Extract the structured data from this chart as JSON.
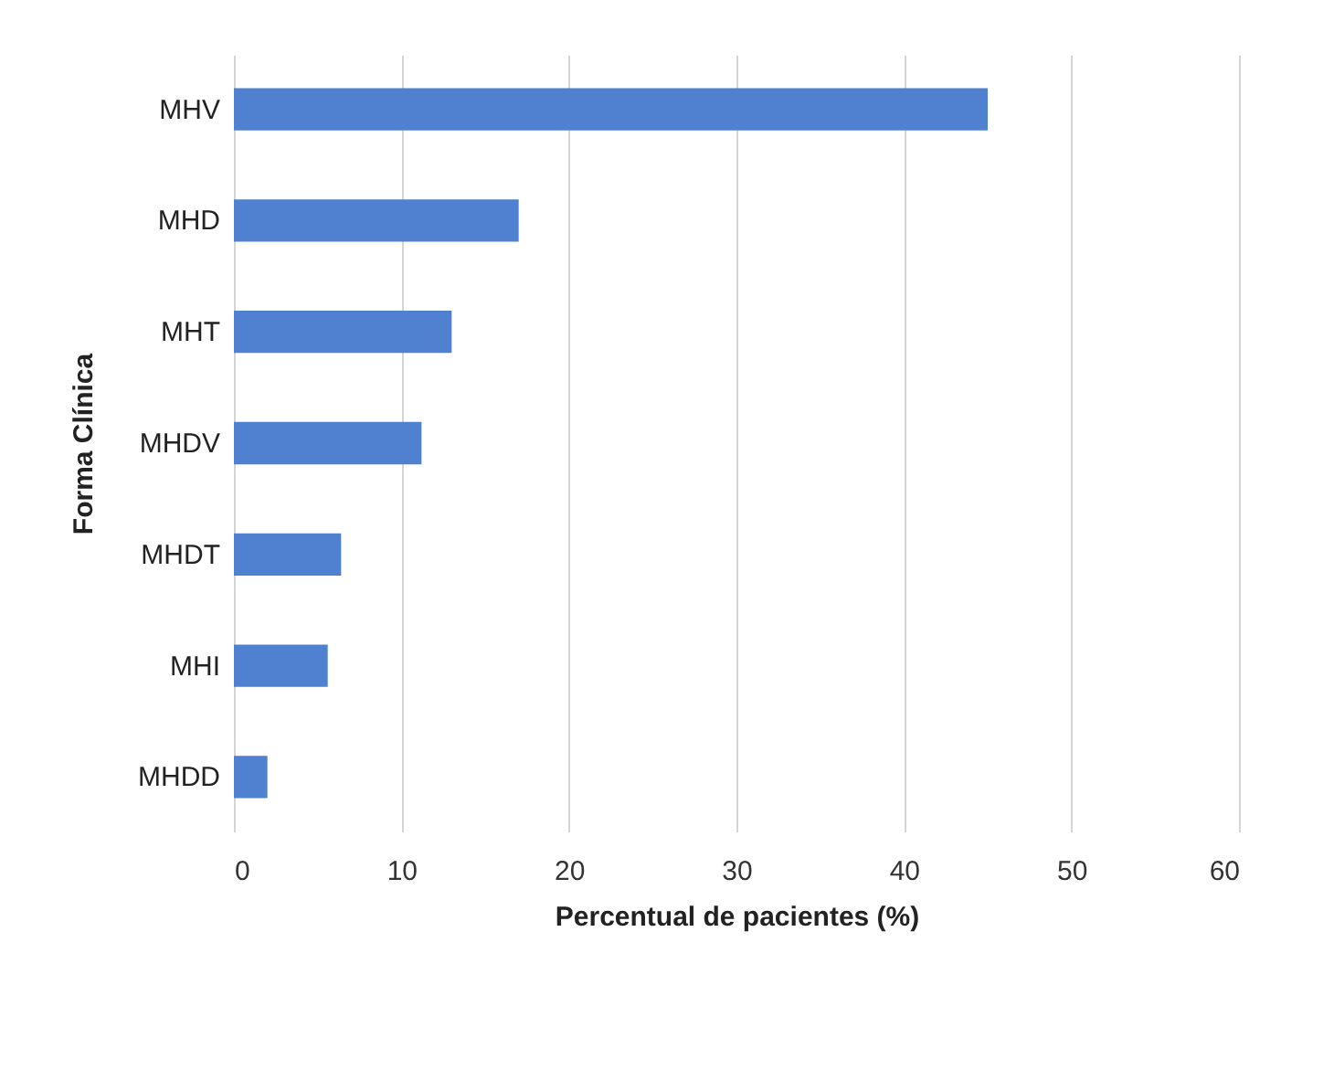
{
  "chart_data": {
    "type": "bar",
    "orientation": "horizontal",
    "categories": [
      "MHV",
      "MHD",
      "MHT",
      "MHDV",
      "MHDT",
      "MHI",
      "MHDD"
    ],
    "values": [
      45,
      17,
      13,
      11.2,
      6.4,
      5.6,
      2
    ],
    "color": "#4f81d0",
    "xlabel": "Percentual de pacientes (%)",
    "ylabel": "Forma Clínica",
    "xlim": [
      0,
      60
    ],
    "xticks": [
      0,
      10,
      20,
      30,
      40,
      50,
      60
    ],
    "grid": "x"
  }
}
